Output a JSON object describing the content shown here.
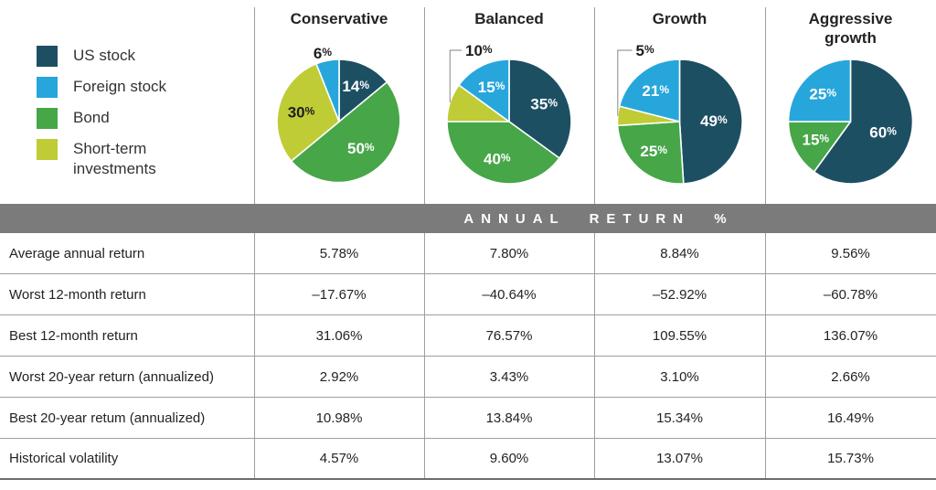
{
  "colors": {
    "us_stock": "#1d4f63",
    "foreign_stock": "#27a6db",
    "bond": "#46a648",
    "short_term": "#bfcc35",
    "band_bg": "#7b7b7b",
    "band_text": "#ffffff",
    "grid_line": "#9e9e9e",
    "bottom_line": "#6d6d6d",
    "label_light": "#ffffff",
    "label_dark": "#1e1e1e"
  },
  "legend": {
    "items": [
      {
        "key": "us_stock",
        "label": "US stock"
      },
      {
        "key": "foreign_stock",
        "label": "Foreign stock"
      },
      {
        "key": "bond",
        "label": "Bond"
      },
      {
        "key": "short_term",
        "label": "Short-term investments"
      }
    ]
  },
  "band": {
    "title": "ANNUAL RETURN %"
  },
  "chart_data": [
    {
      "type": "pie",
      "title": "Conservative",
      "slices": [
        {
          "segment": "US stock",
          "key": "us_stock",
          "value": 14,
          "label": "14%",
          "label_style": "inside-light"
        },
        {
          "segment": "Bond",
          "key": "bond",
          "value": 50,
          "label": "50%",
          "label_style": "inside-light"
        },
        {
          "segment": "Short-term investments",
          "key": "short_term",
          "value": 30,
          "label": "30%",
          "label_style": "inside-dark"
        },
        {
          "segment": "Foreign stock",
          "key": "foreign_stock",
          "value": 6,
          "label": "6%",
          "label_style": "callout-above"
        }
      ]
    },
    {
      "type": "pie",
      "title": "Balanced",
      "slices": [
        {
          "segment": "US stock",
          "key": "us_stock",
          "value": 35,
          "label": "35%",
          "label_style": "inside-light"
        },
        {
          "segment": "Bond",
          "key": "bond",
          "value": 40,
          "label": "40%",
          "label_style": "inside-light"
        },
        {
          "segment": "Short-term investments",
          "key": "short_term",
          "value": 10,
          "label": "10%",
          "label_style": "callout-left"
        },
        {
          "segment": "Foreign stock",
          "key": "foreign_stock",
          "value": 15,
          "label": "15%",
          "label_style": "inside-light"
        }
      ]
    },
    {
      "type": "pie",
      "title": "Growth",
      "slices": [
        {
          "segment": "US stock",
          "key": "us_stock",
          "value": 49,
          "label": "49%",
          "label_style": "inside-light"
        },
        {
          "segment": "Bond",
          "key": "bond",
          "value": 25,
          "label": "25%",
          "label_style": "inside-light"
        },
        {
          "segment": "Short-term investments",
          "key": "short_term",
          "value": 5,
          "label": "5%",
          "label_style": "callout-left"
        },
        {
          "segment": "Foreign stock",
          "key": "foreign_stock",
          "value": 21,
          "label": "21%",
          "label_style": "inside-light"
        }
      ]
    },
    {
      "type": "pie",
      "title": "Aggressive growth",
      "slices": [
        {
          "segment": "US stock",
          "key": "us_stock",
          "value": 60,
          "label": "60%",
          "label_style": "inside-light"
        },
        {
          "segment": "Bond",
          "key": "bond",
          "value": 15,
          "label": "15%",
          "label_style": "inside-light"
        },
        {
          "segment": "Foreign stock",
          "key": "foreign_stock",
          "value": 25,
          "label": "25%",
          "label_style": "inside-light"
        }
      ]
    },
    {
      "type": "table",
      "title": "ANNUAL RETURN %",
      "columns": [
        "Conservative",
        "Balanced",
        "Growth",
        "Aggressive growth"
      ],
      "rows": [
        {
          "label": "Average annual return",
          "values": [
            "5.78%",
            "7.80%",
            "8.84%",
            "9.56%"
          ]
        },
        {
          "label": "Worst 12-month return",
          "values": [
            "–17.67%",
            "–40.64%",
            "–52.92%",
            "–60.78%"
          ]
        },
        {
          "label": "Best 12-month return",
          "values": [
            "31.06%",
            "76.57%",
            "109.55%",
            "136.07%"
          ]
        },
        {
          "label": "Worst 20-year return (annualized)",
          "values": [
            "2.92%",
            "3.43%",
            "3.10%",
            "2.66%"
          ]
        },
        {
          "label": "Best 20-year retum (annualized)",
          "values": [
            "10.98%",
            "13.84%",
            "15.34%",
            "16.49%"
          ]
        },
        {
          "label": "Historical volatility",
          "values": [
            "4.57%",
            "9.60%",
            "13.07%",
            "15.73%"
          ]
        }
      ]
    }
  ]
}
